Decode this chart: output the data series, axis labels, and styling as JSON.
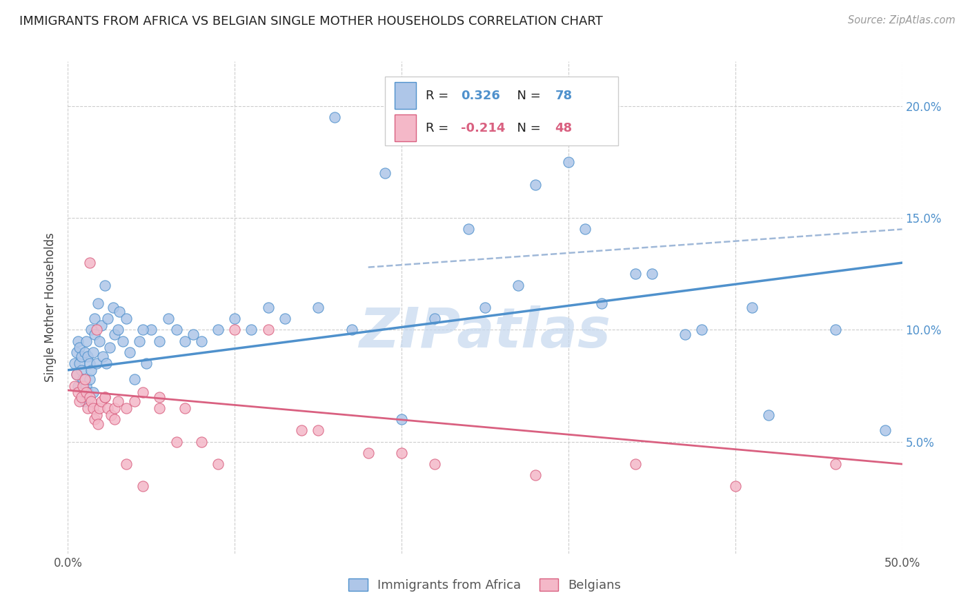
{
  "title": "IMMIGRANTS FROM AFRICA VS BELGIAN SINGLE MOTHER HOUSEHOLDS CORRELATION CHART",
  "source": "Source: ZipAtlas.com",
  "ylabel": "Single Mother Households",
  "xlim": [
    0.0,
    0.5
  ],
  "ylim": [
    0.0,
    0.22
  ],
  "yticks": [
    0.05,
    0.1,
    0.15,
    0.2
  ],
  "ytick_labels": [
    "5.0%",
    "10.0%",
    "15.0%",
    "20.0%"
  ],
  "blue_scatter_x": [
    0.004,
    0.005,
    0.005,
    0.006,
    0.006,
    0.007,
    0.007,
    0.008,
    0.008,
    0.009,
    0.009,
    0.01,
    0.01,
    0.011,
    0.011,
    0.012,
    0.012,
    0.013,
    0.013,
    0.014,
    0.014,
    0.015,
    0.015,
    0.016,
    0.016,
    0.017,
    0.018,
    0.019,
    0.02,
    0.021,
    0.022,
    0.023,
    0.024,
    0.025,
    0.027,
    0.028,
    0.03,
    0.031,
    0.033,
    0.035,
    0.037,
    0.04,
    0.043,
    0.047,
    0.05,
    0.06,
    0.07,
    0.075,
    0.08,
    0.09,
    0.1,
    0.11,
    0.12,
    0.13,
    0.15,
    0.17,
    0.2,
    0.22,
    0.25,
    0.28,
    0.3,
    0.32,
    0.35,
    0.38,
    0.42,
    0.46,
    0.49,
    0.045,
    0.055,
    0.065,
    0.16,
    0.19,
    0.24,
    0.27,
    0.31,
    0.34,
    0.37,
    0.41
  ],
  "blue_scatter_y": [
    0.085,
    0.08,
    0.09,
    0.075,
    0.095,
    0.085,
    0.092,
    0.082,
    0.088,
    0.07,
    0.078,
    0.09,
    0.068,
    0.095,
    0.075,
    0.088,
    0.072,
    0.085,
    0.078,
    0.1,
    0.082,
    0.09,
    0.072,
    0.098,
    0.105,
    0.085,
    0.112,
    0.095,
    0.102,
    0.088,
    0.12,
    0.085,
    0.105,
    0.092,
    0.11,
    0.098,
    0.1,
    0.108,
    0.095,
    0.105,
    0.09,
    0.078,
    0.095,
    0.085,
    0.1,
    0.105,
    0.095,
    0.098,
    0.095,
    0.1,
    0.105,
    0.1,
    0.11,
    0.105,
    0.11,
    0.1,
    0.06,
    0.105,
    0.11,
    0.165,
    0.175,
    0.112,
    0.125,
    0.1,
    0.062,
    0.1,
    0.055,
    0.1,
    0.095,
    0.1,
    0.195,
    0.17,
    0.145,
    0.12,
    0.145,
    0.125,
    0.098,
    0.11
  ],
  "pink_scatter_x": [
    0.004,
    0.005,
    0.006,
    0.007,
    0.008,
    0.009,
    0.01,
    0.011,
    0.012,
    0.013,
    0.014,
    0.015,
    0.016,
    0.017,
    0.018,
    0.019,
    0.02,
    0.022,
    0.024,
    0.026,
    0.028,
    0.03,
    0.035,
    0.04,
    0.045,
    0.055,
    0.07,
    0.09,
    0.12,
    0.15,
    0.18,
    0.22,
    0.28,
    0.34,
    0.4,
    0.46,
    0.013,
    0.017,
    0.022,
    0.028,
    0.035,
    0.045,
    0.055,
    0.065,
    0.08,
    0.1,
    0.14,
    0.2
  ],
  "pink_scatter_y": [
    0.075,
    0.08,
    0.072,
    0.068,
    0.07,
    0.075,
    0.078,
    0.072,
    0.065,
    0.07,
    0.068,
    0.065,
    0.06,
    0.062,
    0.058,
    0.065,
    0.068,
    0.07,
    0.065,
    0.062,
    0.065,
    0.068,
    0.065,
    0.068,
    0.072,
    0.07,
    0.065,
    0.04,
    0.1,
    0.055,
    0.045,
    0.04,
    0.035,
    0.04,
    0.03,
    0.04,
    0.13,
    0.1,
    0.07,
    0.06,
    0.04,
    0.03,
    0.065,
    0.05,
    0.05,
    0.1,
    0.055,
    0.045
  ],
  "blue_line_x": [
    0.0,
    0.5
  ],
  "blue_line_y": [
    0.082,
    0.13
  ],
  "pink_line_x": [
    0.0,
    0.5
  ],
  "pink_line_y": [
    0.073,
    0.04
  ],
  "dashed_line_x": [
    0.18,
    0.5
  ],
  "dashed_line_y": [
    0.128,
    0.145
  ],
  "blue_color": "#4f91cc",
  "blue_scatter_color": "#aec6e8",
  "pink_color": "#d96080",
  "pink_scatter_color": "#f4b8c8",
  "dashed_color": "#9fb8d8",
  "watermark_text": "ZIPatlas",
  "watermark_color": "#c5d8ee",
  "background_color": "#ffffff",
  "grid_color": "#cccccc",
  "legend_r1_black": "R = ",
  "legend_r1_val": "0.326",
  "legend_r1_n_black": "  N = ",
  "legend_r1_n_val": "78",
  "legend_r2_black": "R = ",
  "legend_r2_val": "-0.214",
  "legend_r2_n_black": "  N = ",
  "legend_r2_n_val": "48"
}
